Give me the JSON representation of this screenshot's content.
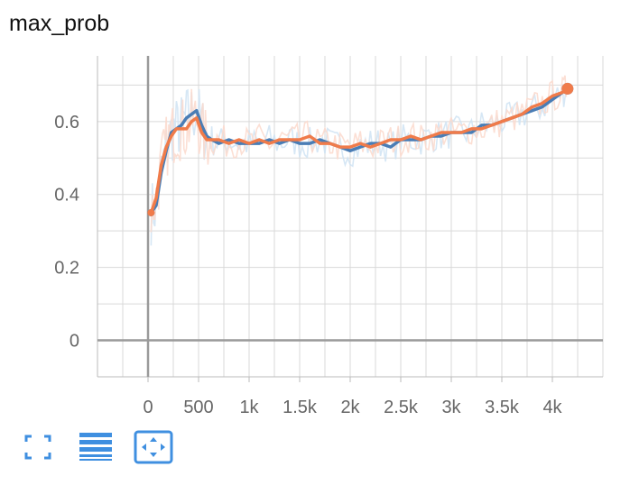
{
  "chart": {
    "title": "max_prob"
  },
  "colors": {
    "blue": "#4a7db5",
    "orange": "#f07b4a",
    "blue_light": "#cfe3f3",
    "orange_light": "#fbd9cc",
    "grid": "#d9d9d9",
    "axis": "#9a9a9a",
    "tick_text": "#666666",
    "toolbar": "#3f8fe0"
  },
  "toolbar": {
    "icons": [
      "fullscreen-icon",
      "data-list-icon",
      "fit-domain-icon"
    ]
  },
  "chart_data": {
    "type": "line",
    "title": "max_prob",
    "xlabel": "",
    "ylabel": "",
    "xlim": [
      -500,
      4500
    ],
    "ylim": [
      -0.1,
      0.78
    ],
    "x_ticks": [
      0,
      500,
      1000,
      1500,
      2000,
      2500,
      3000,
      3500,
      4000
    ],
    "x_tick_labels": [
      "0",
      "500",
      "1k",
      "1.5k",
      "2k",
      "2.5k",
      "3k",
      "3.5k",
      "4k"
    ],
    "y_ticks": [
      0,
      0.2,
      0.4,
      0.6
    ],
    "y_tick_labels": [
      "0",
      "0.2",
      "0.4",
      "0.6"
    ],
    "grid": true,
    "legend": "none",
    "series": [
      {
        "color": "#4a7db5",
        "x": [
          30,
          80,
          130,
          180,
          230,
          280,
          330,
          380,
          430,
          480,
          530,
          580,
          630,
          700,
          800,
          900,
          1000,
          1100,
          1200,
          1300,
          1400,
          1500,
          1600,
          1700,
          1800,
          1900,
          2000,
          2100,
          2200,
          2300,
          2400,
          2500,
          2600,
          2700,
          2800,
          2900,
          3000,
          3100,
          3200,
          3300,
          3400,
          3500,
          3600,
          3700,
          3800,
          3900,
          4000,
          4100,
          4150
        ],
        "y": [
          0.35,
          0.37,
          0.46,
          0.52,
          0.57,
          0.58,
          0.59,
          0.61,
          0.62,
          0.63,
          0.59,
          0.56,
          0.55,
          0.54,
          0.55,
          0.54,
          0.54,
          0.54,
          0.55,
          0.54,
          0.55,
          0.54,
          0.54,
          0.55,
          0.54,
          0.53,
          0.52,
          0.53,
          0.54,
          0.54,
          0.53,
          0.55,
          0.55,
          0.55,
          0.56,
          0.56,
          0.57,
          0.57,
          0.57,
          0.59,
          0.59,
          0.6,
          0.61,
          0.62,
          0.63,
          0.64,
          0.66,
          0.68,
          0.69
        ]
      },
      {
        "color": "#f07b4a",
        "x": [
          30,
          80,
          130,
          180,
          230,
          280,
          330,
          380,
          430,
          480,
          530,
          580,
          630,
          700,
          800,
          900,
          1000,
          1100,
          1200,
          1300,
          1400,
          1500,
          1600,
          1700,
          1800,
          1900,
          2000,
          2100,
          2200,
          2300,
          2400,
          2500,
          2600,
          2700,
          2800,
          2900,
          3000,
          3100,
          3200,
          3300,
          3400,
          3500,
          3600,
          3700,
          3800,
          3900,
          4000,
          4100,
          4150
        ],
        "y": [
          0.35,
          0.39,
          0.48,
          0.53,
          0.56,
          0.58,
          0.58,
          0.58,
          0.6,
          0.61,
          0.57,
          0.55,
          0.55,
          0.55,
          0.54,
          0.55,
          0.54,
          0.55,
          0.54,
          0.55,
          0.55,
          0.55,
          0.56,
          0.54,
          0.54,
          0.53,
          0.53,
          0.54,
          0.53,
          0.54,
          0.55,
          0.55,
          0.56,
          0.55,
          0.56,
          0.57,
          0.57,
          0.57,
          0.58,
          0.58,
          0.59,
          0.6,
          0.61,
          0.62,
          0.64,
          0.65,
          0.67,
          0.68,
          0.69
        ]
      }
    ]
  }
}
